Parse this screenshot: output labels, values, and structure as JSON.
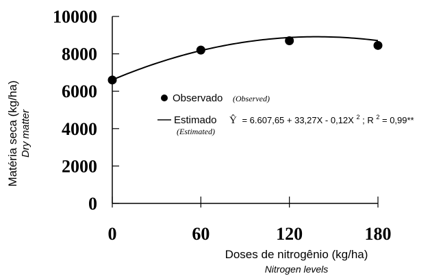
{
  "chart_data": {
    "type": "scatter",
    "xlabel": "Doses de nitrogênio (kg/ha)",
    "xlabel_sub": "Nitrogen levels",
    "ylabel": "Matéria seca (kg/ha)",
    "ylabel_sub": "Dry matter",
    "xlim": [
      0,
      180
    ],
    "ylim": [
      0,
      10000
    ],
    "x_ticks": [
      0,
      60,
      120,
      180
    ],
    "y_ticks": [
      0,
      2000,
      4000,
      6000,
      8000,
      10000
    ],
    "x_tick_labels": [
      "0",
      "60",
      "120",
      "180"
    ],
    "y_tick_labels": [
      "0",
      "2000",
      "4000",
      "6000",
      "8000",
      "10000"
    ],
    "grid": false,
    "legend_position": "center",
    "series": [
      {
        "name": "Observado",
        "name_sub": "(Observed)",
        "kind": "points",
        "x": [
          0,
          60,
          120,
          180
        ],
        "y": [
          6600,
          8200,
          8700,
          8450
        ]
      },
      {
        "name": "Estimado",
        "name_sub": "(Estimated)",
        "kind": "fitted-line",
        "equation": "Ŷ = 6.607,65 + 33,27X - 0,12X²; R² = 0,99**",
        "coefficients": {
          "b0": 6607.65,
          "b1": 33.27,
          "b2": -0.12
        },
        "x_range": [
          0,
          180
        ]
      }
    ]
  },
  "legend": {
    "observed_label": "Observado",
    "observed_sub": "(Observed)",
    "estimated_label": "Estimado",
    "estimated_sub": "(Estimated)",
    "equation_hat": "Ŷ",
    "equation_body": "= 6.607,65 + 33,27X - 0,12X",
    "equation_sup1": "2",
    "equation_mid": "; R",
    "equation_sup2": "2",
    "equation_end": " = 0,99**"
  }
}
